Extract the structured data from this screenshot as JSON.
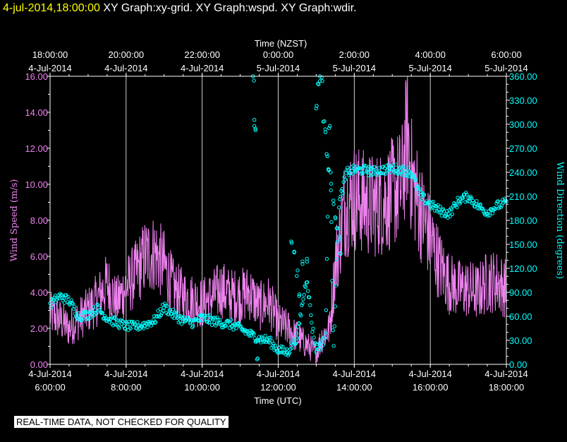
{
  "header": {
    "time": "4-jul-2014,18:00:00",
    "graphs": "XY Graph:xy-grid.  XY Graph:wspd.  XY Graph:wdir."
  },
  "notice": "REAL-TIME DATA, NOT CHECKED FOR QUALITY",
  "colors": {
    "wspd": "#ee82ee",
    "wdir": "#00ffff",
    "grid": "#ffffff",
    "background": "#000000"
  },
  "chart_data": {
    "type": "line",
    "grid": "vertical lines at each 2-hour tick",
    "x_top": {
      "label": "Time (NZST)",
      "ticks": [
        [
          "18:00:00",
          "4-Jul-2014"
        ],
        [
          "20:00:00",
          "4-Jul-2014"
        ],
        [
          "22:00:00",
          "4-Jul-2014"
        ],
        [
          "0:00:00",
          "5-Jul-2014"
        ],
        [
          "2:00:00",
          "5-Jul-2014"
        ],
        [
          "4:00:00",
          "5-Jul-2014"
        ],
        [
          "6:00:00",
          "5-Jul-2014"
        ]
      ]
    },
    "x_bottom": {
      "label": "Time (UTC)",
      "ticks": [
        [
          "4-Jul-2014",
          "6:00:00"
        ],
        [
          "4-Jul-2014",
          "8:00:00"
        ],
        [
          "4-Jul-2014",
          "10:00:00"
        ],
        [
          "4-Jul-2014",
          "12:00:00"
        ],
        [
          "4-Jul-2014",
          "14:00:00"
        ],
        [
          "4-Jul-2014",
          "16:00:00"
        ],
        [
          "4-Jul-2014",
          "18:00:00"
        ]
      ]
    },
    "xlim_utc_hours": [
      6,
      18
    ],
    "y_left": {
      "label": "Wind Speed (m/s)",
      "ylim": [
        0,
        16
      ],
      "ticks": [
        "0.00",
        "2.00",
        "4.00",
        "6.00",
        "8.00",
        "10.00",
        "12.00",
        "14.00",
        "16.00"
      ]
    },
    "y_right": {
      "label": "Wind Direction (degrees)",
      "ylim": [
        0,
        360
      ],
      "ticks": [
        "0.00",
        "30.00",
        "60.00",
        "90.00",
        "120.00",
        "150.00",
        "180.00",
        "210.00",
        "240.00",
        "270.00",
        "300.00",
        "330.00",
        "360.00"
      ]
    },
    "series": [
      {
        "name": "wspd",
        "style": "line",
        "axis": "left",
        "x_utc_hours": [
          6.0,
          6.25,
          6.5,
          6.75,
          7.0,
          7.25,
          7.5,
          7.75,
          8.0,
          8.25,
          8.5,
          8.75,
          9.0,
          9.25,
          9.5,
          9.75,
          10.0,
          10.25,
          10.5,
          10.75,
          11.0,
          11.25,
          11.5,
          11.75,
          12.0,
          12.25,
          12.5,
          12.75,
          13.0,
          13.15,
          13.35,
          13.5,
          13.75,
          14.0,
          14.25,
          14.5,
          14.75,
          15.0,
          15.25,
          15.4,
          15.5,
          15.75,
          16.0,
          16.25,
          16.5,
          16.75,
          17.0,
          17.25,
          17.5,
          17.75,
          18.0
        ],
        "values": [
          2.8,
          2.5,
          2.0,
          2.5,
          3.0,
          3.6,
          4.5,
          3.4,
          4.3,
          5.0,
          6.0,
          6.2,
          5.5,
          4.2,
          3.8,
          3.6,
          3.4,
          3.7,
          4.2,
          3.8,
          3.8,
          4.0,
          3.2,
          3.5,
          2.3,
          2.0,
          1.5,
          1.1,
          0.6,
          1.5,
          2.0,
          5.5,
          8.8,
          9.3,
          9.0,
          8.8,
          9.0,
          9.5,
          10.0,
          13.0,
          10.5,
          8.5,
          7.0,
          5.5,
          4.5,
          4.2,
          4.2,
          4.0,
          4.6,
          4.6,
          4.2
        ]
      },
      {
        "name": "wdir",
        "style": "circles",
        "axis": "right",
        "x_utc_hours": [
          6.0,
          6.25,
          6.5,
          6.75,
          7.0,
          7.25,
          7.5,
          7.75,
          8.0,
          8.25,
          8.5,
          8.75,
          9.0,
          9.25,
          9.5,
          9.75,
          10.0,
          10.25,
          10.5,
          10.75,
          11.0,
          11.25,
          11.5,
          11.75,
          12.0,
          12.25,
          12.5,
          12.75,
          12.9,
          13.0,
          13.15,
          13.25,
          13.35,
          13.45,
          13.6,
          13.8,
          14.0,
          14.25,
          14.5,
          14.75,
          15.0,
          15.25,
          15.5,
          15.75,
          16.0,
          16.25,
          16.5,
          16.75,
          17.0,
          17.25,
          17.5,
          17.75,
          18.0
        ],
        "values": [
          75,
          85,
          80,
          60,
          62,
          70,
          58,
          52,
          48,
          47,
          50,
          55,
          72,
          62,
          55,
          52,
          58,
          55,
          52,
          50,
          45,
          38,
          32,
          30,
          18,
          15,
          35,
          110,
          45,
          20,
          25,
          40,
          330,
          15,
          200,
          240,
          243,
          243,
          241,
          243,
          245,
          243,
          240,
          210,
          200,
          192,
          188,
          205,
          210,
          198,
          190,
          198,
          202
        ]
      },
      {
        "name": "wdir-scatter",
        "style": "circles",
        "axis": "right",
        "x_utc_hours": [
          11.35,
          11.37,
          11.4,
          11.45,
          12.35,
          12.42,
          12.5,
          12.55,
          12.65,
          12.75,
          13.0,
          13.05,
          13.1,
          13.15,
          13.2,
          13.25,
          13.28,
          13.32,
          13.4,
          13.45,
          13.5,
          13.55,
          13.6,
          13.63
        ],
        "values": [
          357,
          302,
          295,
          3,
          150,
          140,
          115,
          85,
          128,
          130,
          320,
          350,
          358,
          355,
          300,
          290,
          260,
          240,
          222,
          205,
          185,
          170,
          160,
          140
        ]
      }
    ]
  }
}
